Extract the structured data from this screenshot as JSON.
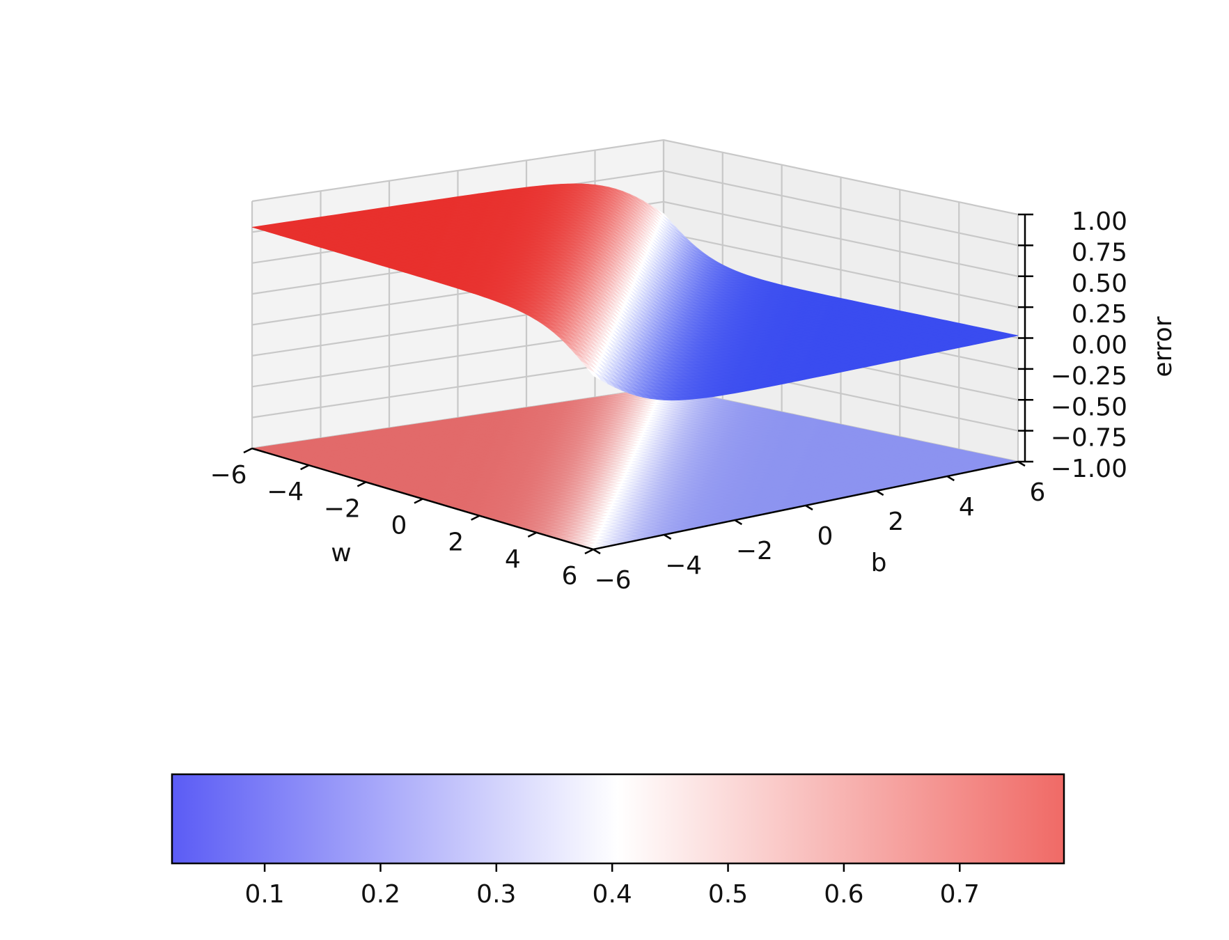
{
  "chart_data": {
    "type": "surface",
    "title": "",
    "xlabel": "w",
    "ylabel": "b",
    "zlabel": "error",
    "x_ticks": [
      -6,
      -4,
      -2,
      0,
      2,
      4,
      6
    ],
    "y_ticks": [
      -6,
      -4,
      -2,
      0,
      2,
      4,
      6
    ],
    "z_ticks": [
      -1.0,
      -0.75,
      -0.5,
      -0.25,
      0.0,
      0.25,
      0.5,
      0.75,
      1.0
    ],
    "x_tick_labels": [
      "−6",
      "−4",
      "−2",
      "0",
      "2",
      "4",
      "6"
    ],
    "y_tick_labels": [
      "−6",
      "−4",
      "−2",
      "0",
      "2",
      "4",
      "6"
    ],
    "z_tick_labels": [
      "−1.00",
      "−0.75",
      "−0.50",
      "−0.25",
      "0.00",
      "0.25",
      "0.50",
      "0.75",
      "1.00"
    ],
    "xlim": [
      -6,
      6
    ],
    "ylim": [
      -6,
      6
    ],
    "zlim": [
      -1,
      1
    ],
    "grid": true,
    "colormap": "coolwarm",
    "surface": {
      "description_function": "error = sigmoid step across w + b",
      "high_value": 0.79,
      "low_value": 0.02,
      "transition_center": 0,
      "high_color": "#e8302d",
      "low_color": "#3a4cf0"
    },
    "projection": {
      "offset": -1,
      "high_color": "#e26a6a",
      "low_color": "#8c93f0"
    },
    "colorbar": {
      "orientation": "horizontal",
      "range": [
        0.02,
        0.79
      ],
      "ticks": [
        0.1,
        0.2,
        0.3,
        0.4,
        0.5,
        0.6,
        0.7
      ],
      "tick_labels": [
        "0.1",
        "0.2",
        "0.3",
        "0.4",
        "0.5",
        "0.6",
        "0.7"
      ],
      "colors": [
        "#5b5cf5",
        "#ffffff",
        "#f06a66"
      ]
    }
  }
}
